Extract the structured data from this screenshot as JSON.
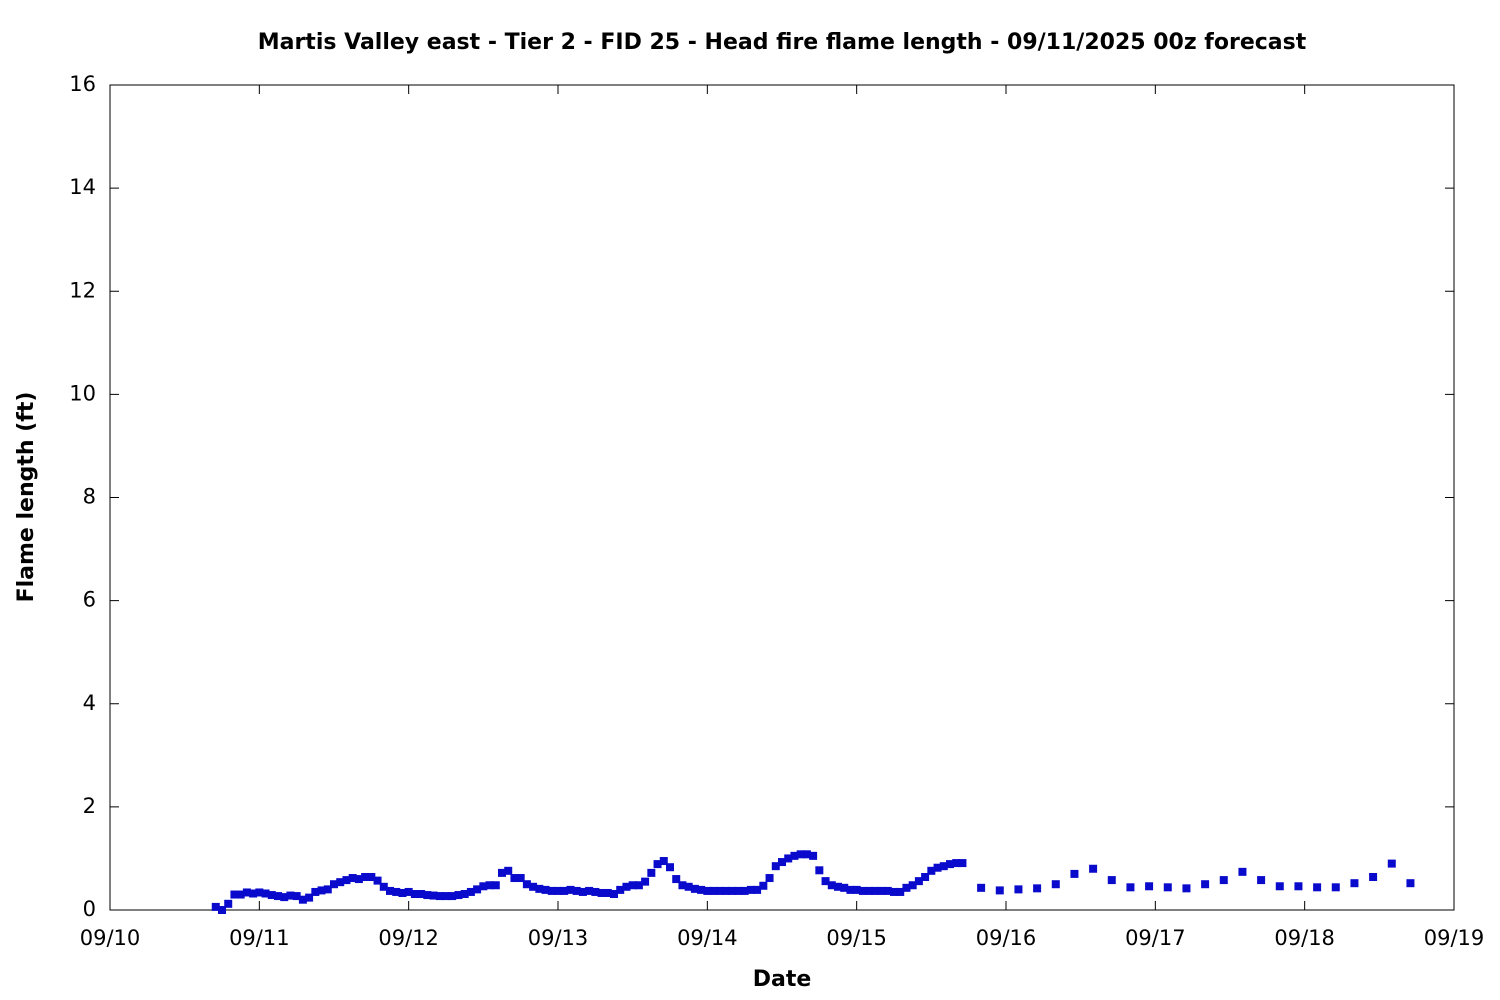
{
  "chart_data": {
    "type": "scatter",
    "title": "Martis Valley east - Tier 2 - FID 25 - Head fire flame length - 09/11/2025 00z forecast",
    "xlabel": "Date",
    "ylabel": "Flame length (ft)",
    "xlim": [
      0,
      216
    ],
    "xticks": [
      {
        "value": 0,
        "label": "09/10"
      },
      {
        "value": 24,
        "label": "09/11"
      },
      {
        "value": 48,
        "label": "09/12"
      },
      {
        "value": 72,
        "label": "09/13"
      },
      {
        "value": 96,
        "label": "09/14"
      },
      {
        "value": 120,
        "label": "09/15"
      },
      {
        "value": 144,
        "label": "09/16"
      },
      {
        "value": 168,
        "label": "09/17"
      },
      {
        "value": 192,
        "label": "09/18"
      },
      {
        "value": 216,
        "label": "09/19"
      }
    ],
    "ylim": [
      0,
      16
    ],
    "yticks": [
      0,
      2,
      4,
      6,
      8,
      10,
      12,
      14,
      16
    ],
    "color": "#0a0acc",
    "x": [
      17,
      18,
      19,
      20,
      21,
      22,
      23,
      24,
      25,
      26,
      27,
      28,
      29,
      30,
      31,
      32,
      33,
      34,
      35,
      36,
      37,
      38,
      39,
      40,
      41,
      42,
      43,
      44,
      45,
      46,
      47,
      48,
      49,
      50,
      51,
      52,
      53,
      54,
      55,
      56,
      57,
      58,
      59,
      60,
      61,
      62,
      63,
      64,
      65,
      66,
      67,
      68,
      69,
      70,
      71,
      72,
      73,
      74,
      75,
      76,
      77,
      78,
      79,
      80,
      81,
      82,
      83,
      84,
      85,
      86,
      87,
      88,
      89,
      90,
      91,
      92,
      93,
      94,
      95,
      96,
      97,
      98,
      99,
      100,
      101,
      102,
      103,
      104,
      105,
      106,
      107,
      108,
      109,
      110,
      111,
      112,
      113,
      114,
      115,
      116,
      117,
      118,
      119,
      120,
      121,
      122,
      123,
      124,
      125,
      126,
      127,
      128,
      129,
      130,
      131,
      132,
      133,
      134,
      135,
      136,
      137,
      140,
      143,
      146,
      149,
      152,
      155,
      158,
      161,
      164,
      167,
      170,
      173,
      176,
      179,
      182,
      185,
      188,
      191,
      194,
      197,
      200,
      203,
      206,
      209
    ],
    "values": [
      0.06,
      0,
      0.12,
      0.3,
      0.3,
      0.34,
      0.32,
      0.34,
      0.32,
      0.29,
      0.27,
      0.25,
      0.28,
      0.27,
      0.2,
      0.24,
      0.35,
      0.38,
      0.4,
      0.5,
      0.54,
      0.58,
      0.62,
      0.6,
      0.64,
      0.64,
      0.57,
      0.45,
      0.37,
      0.35,
      0.33,
      0.35,
      0.31,
      0.31,
      0.29,
      0.28,
      0.27,
      0.27,
      0.27,
      0.29,
      0.31,
      0.35,
      0.4,
      0.46,
      0.48,
      0.48,
      0.72,
      0.76,
      0.62,
      0.62,
      0.5,
      0.45,
      0.41,
      0.39,
      0.37,
      0.37,
      0.37,
      0.39,
      0.37,
      0.35,
      0.37,
      0.35,
      0.33,
      0.33,
      0.31,
      0.39,
      0.45,
      0.48,
      0.48,
      0.55,
      0.72,
      0.89,
      0.95,
      0.83,
      0.6,
      0.48,
      0.45,
      0.41,
      0.39,
      0.37,
      0.37,
      0.37,
      0.37,
      0.37,
      0.37,
      0.37,
      0.39,
      0.39,
      0.47,
      0.62,
      0.85,
      0.93,
      1.0,
      1.05,
      1.08,
      1.08,
      1.05,
      0.77,
      0.56,
      0.48,
      0.45,
      0.43,
      0.39,
      0.39,
      0.37,
      0.37,
      0.37,
      0.37,
      0.37,
      0.35,
      0.35,
      0.43,
      0.48,
      0.56,
      0.64,
      0.76,
      0.82,
      0.85,
      0.89,
      0.91,
      0.91,
      0.43,
      0.38,
      0.4,
      0.42,
      0.5,
      0.7,
      0.8,
      0.58,
      0.44,
      0.46,
      0.44,
      0.42,
      0.5,
      0.58,
      0.74,
      0.58,
      0.46,
      0.46,
      0.44,
      0.44,
      0.52,
      0.64,
      0.9,
      0.52
    ]
  }
}
